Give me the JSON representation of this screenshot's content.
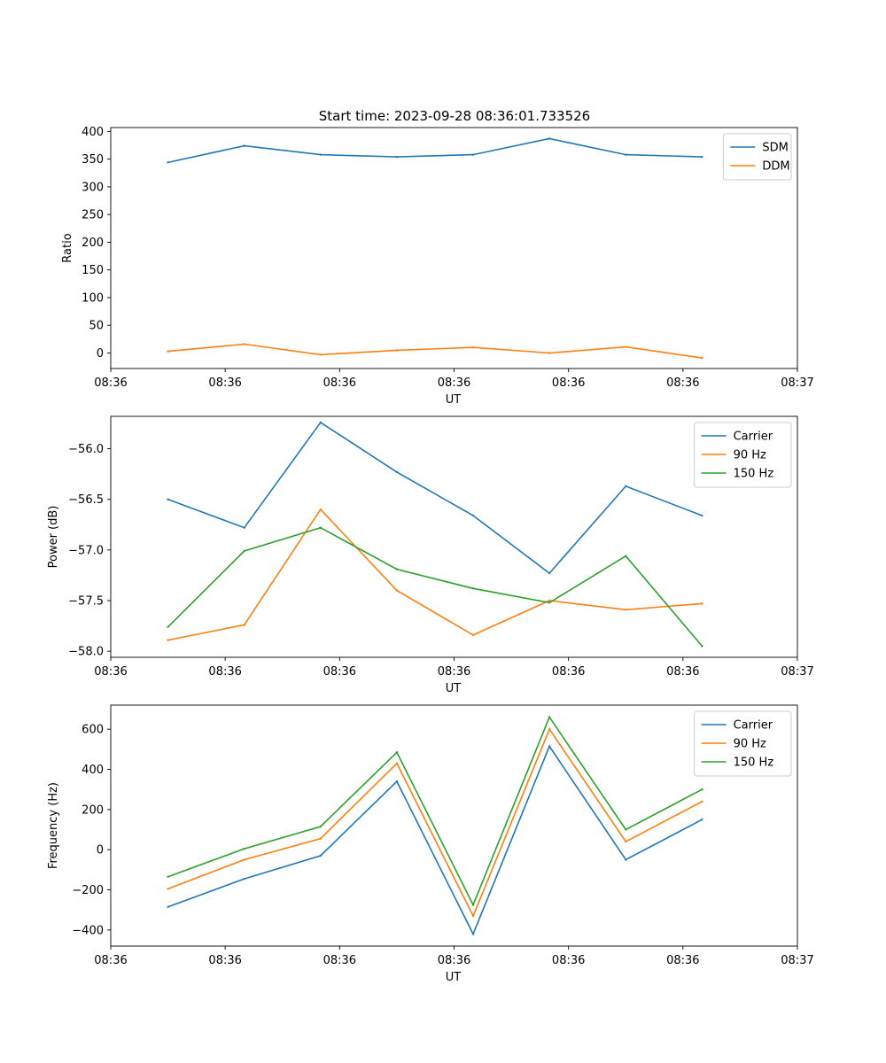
{
  "figure_title": "Start time: 2023-09-28 08:36:01.733526",
  "colors": {
    "c1": "#1f77b4",
    "c2": "#ff7f0e",
    "c3": "#2ca02c"
  },
  "chart_data": [
    {
      "type": "line",
      "xlabel": "UT",
      "ylabel": "Ratio",
      "xlim": [
        0,
        9
      ],
      "ylim": [
        -28,
        407
      ],
      "x": [
        0.75,
        1.75,
        2.75,
        3.75,
        4.75,
        5.75,
        6.75,
        7.75
      ],
      "xticks": [
        0,
        1.5,
        3,
        4.5,
        6,
        7.5,
        9
      ],
      "xtick_labels": [
        "08:36",
        "08:36",
        "08:36",
        "08:36",
        "08:36",
        "08:36",
        "08:37"
      ],
      "yticks": [
        0,
        50,
        100,
        150,
        200,
        250,
        300,
        350,
        400
      ],
      "ytick_labels": [
        "0",
        "50",
        "100",
        "150",
        "200",
        "250",
        "300",
        "350",
        "400"
      ],
      "legend": "top-right",
      "series": [
        {
          "name": "SDM",
          "color": "#1f77b4",
          "values": [
            344,
            374,
            358,
            354,
            358,
            387,
            358,
            354
          ]
        },
        {
          "name": "DDM",
          "color": "#ff7f0e",
          "values": [
            3,
            16,
            -3,
            5,
            10,
            0,
            11,
            -9
          ]
        }
      ]
    },
    {
      "type": "line",
      "xlabel": "UT",
      "ylabel": "Power (dB)",
      "xlim": [
        0,
        9
      ],
      "ylim": [
        -58.06,
        -55.68
      ],
      "x": [
        0.75,
        1.75,
        2.75,
        3.75,
        4.75,
        5.75,
        6.75,
        7.75
      ],
      "xticks": [
        0,
        1.5,
        3,
        4.5,
        6,
        7.5,
        9
      ],
      "xtick_labels": [
        "08:36",
        "08:36",
        "08:36",
        "08:36",
        "08:36",
        "08:36",
        "08:37"
      ],
      "yticks": [
        -58.0,
        -57.5,
        -57.0,
        -56.5,
        -56.0
      ],
      "ytick_labels": [
        "−58.0",
        "−57.5",
        "−57.0",
        "−56.5",
        "−56.0"
      ],
      "legend": "top-right",
      "series": [
        {
          "name": "Carrier",
          "color": "#1f77b4",
          "values": [
            -56.5,
            -56.78,
            -55.74,
            -56.23,
            -56.66,
            -57.23,
            -56.37,
            -56.66
          ]
        },
        {
          "name": "90 Hz",
          "color": "#ff7f0e",
          "values": [
            -57.89,
            -57.74,
            -56.6,
            -57.4,
            -57.84,
            -57.5,
            -57.59,
            -57.53
          ]
        },
        {
          "name": "150 Hz",
          "color": "#2ca02c",
          "values": [
            -57.76,
            -57.01,
            -56.78,
            -57.19,
            -57.38,
            -57.52,
            -57.06,
            -57.95
          ]
        }
      ]
    },
    {
      "type": "line",
      "xlabel": "UT",
      "ylabel": "Frequency (Hz)",
      "xlim": [
        0,
        9
      ],
      "ylim": [
        -480,
        720
      ],
      "x": [
        0.75,
        1.75,
        2.75,
        3.75,
        4.75,
        5.75,
        6.75,
        7.75
      ],
      "xticks": [
        0,
        1.5,
        3,
        4.5,
        6,
        7.5,
        9
      ],
      "xtick_labels": [
        "08:36",
        "08:36",
        "08:36",
        "08:36",
        "08:36",
        "08:36",
        "08:37"
      ],
      "yticks": [
        -400,
        -200,
        0,
        200,
        400,
        600
      ],
      "ytick_labels": [
        "−400",
        "−200",
        "0",
        "200",
        "400",
        "600"
      ],
      "legend": "top-right",
      "series": [
        {
          "name": "Carrier",
          "color": "#1f77b4",
          "values": [
            -285,
            -145,
            -30,
            340,
            -420,
            515,
            -50,
            150
          ]
        },
        {
          "name": "90 Hz",
          "color": "#ff7f0e",
          "values": [
            -195,
            -50,
            55,
            430,
            -330,
            600,
            40,
            240
          ]
        },
        {
          "name": "150 Hz",
          "color": "#2ca02c",
          "values": [
            -135,
            5,
            115,
            485,
            -275,
            660,
            100,
            300
          ]
        }
      ]
    }
  ]
}
